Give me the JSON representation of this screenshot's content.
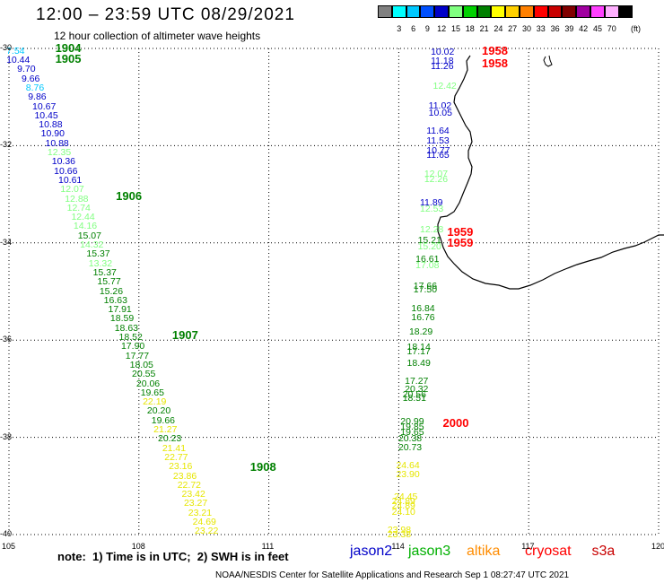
{
  "header": {
    "title": "12:00 – 23:59 UTC 08/29/2021",
    "subtitle": "12 hour collection of altimeter wave heights"
  },
  "scale": {
    "unit": "(ft)",
    "bins": [
      {
        "color": "#808080",
        "label": ""
      },
      {
        "color": "#00ffff",
        "label": "3"
      },
      {
        "color": "#00c8ff",
        "label": "6"
      },
      {
        "color": "#0050ff",
        "label": "9"
      },
      {
        "color": "#0000c8",
        "label": "12"
      },
      {
        "color": "#80ff80",
        "label": "15"
      },
      {
        "color": "#00d000",
        "label": "18"
      },
      {
        "color": "#008000",
        "label": "21"
      },
      {
        "color": "#ffff00",
        "label": "24"
      },
      {
        "color": "#ffd000",
        "label": "27"
      },
      {
        "color": "#ff8000",
        "label": "30"
      },
      {
        "color": "#ff0000",
        "label": "33"
      },
      {
        "color": "#c80000",
        "label": "36"
      },
      {
        "color": "#800000",
        "label": "39"
      },
      {
        "color": "#a000a0",
        "label": "42"
      },
      {
        "color": "#ff40ff",
        "label": "45"
      },
      {
        "color": "#ffb0ff",
        "label": "70"
      },
      {
        "color": "#000000",
        "label": ""
      }
    ]
  },
  "axes": {
    "lon_ticks": [
      "105",
      "108",
      "111",
      "114",
      "117",
      "120"
    ],
    "lat_ticks": [
      "-30",
      "-32",
      "-34",
      "-36",
      "-38",
      "-40"
    ],
    "lon_range": [
      105,
      120
    ],
    "lat_range": [
      -30,
      -40
    ]
  },
  "colors": {
    "blue": "#0000c8",
    "lblue": "#00c8ff",
    "lgreen": "#80ff80",
    "green": "#008000",
    "yellow": "#e6e600",
    "red": "#ff0000",
    "orange": "#ff8c00"
  },
  "tracks": [
    {
      "name": "west-track",
      "color": "green",
      "points": [
        {
          "lon": 105.25,
          "lat": -30.07,
          "value": "7.54",
          "c": "lblue"
        },
        {
          "lon": 105.25,
          "lat": -30.26,
          "value": "10.44",
          "c": "blue"
        },
        {
          "lon": 105.5,
          "lat": -30.45,
          "value": "9.70",
          "c": "blue"
        },
        {
          "lon": 105.6,
          "lat": -30.64,
          "value": "9.66",
          "c": "blue"
        },
        {
          "lon": 105.7,
          "lat": -30.83,
          "value": "8.76",
          "c": "lblue"
        },
        {
          "lon": 105.75,
          "lat": -31.02,
          "value": "9.86",
          "c": "blue"
        },
        {
          "lon": 105.85,
          "lat": -31.21,
          "value": "10.67",
          "c": "blue"
        },
        {
          "lon": 105.9,
          "lat": -31.4,
          "value": "10.45",
          "c": "blue"
        },
        {
          "lon": 106.0,
          "lat": -31.59,
          "value": "10.88",
          "c": "blue"
        },
        {
          "lon": 106.05,
          "lat": -31.78,
          "value": "10.90",
          "c": "blue"
        },
        {
          "lon": 106.15,
          "lat": -31.97,
          "value": "10.88",
          "c": "blue"
        },
        {
          "lon": 106.2,
          "lat": -32.16,
          "value": "12.35",
          "c": "lgreen"
        },
        {
          "lon": 106.3,
          "lat": -32.35,
          "value": "10.36",
          "c": "blue"
        },
        {
          "lon": 106.35,
          "lat": -32.54,
          "value": "10.66",
          "c": "blue"
        },
        {
          "lon": 106.45,
          "lat": -32.73,
          "value": "10.61",
          "c": "blue"
        },
        {
          "lon": 106.5,
          "lat": -32.92,
          "value": "12.07",
          "c": "lgreen"
        },
        {
          "lon": 106.6,
          "lat": -33.11,
          "value": "12.88",
          "c": "lgreen"
        },
        {
          "lon": 106.65,
          "lat": -33.3,
          "value": "12.74",
          "c": "lgreen"
        },
        {
          "lon": 106.75,
          "lat": -33.49,
          "value": "12.44",
          "c": "lgreen"
        },
        {
          "lon": 106.8,
          "lat": -33.68,
          "value": "14.16",
          "c": "lgreen"
        },
        {
          "lon": 106.9,
          "lat": -33.87,
          "value": "15.07",
          "c": "green"
        },
        {
          "lon": 106.95,
          "lat": -34.06,
          "value": "14.32",
          "c": "lgreen"
        },
        {
          "lon": 107.1,
          "lat": -34.25,
          "value": "15.37",
          "c": "green"
        },
        {
          "lon": 107.15,
          "lat": -34.44,
          "value": "13.32",
          "c": "lgreen"
        },
        {
          "lon": 107.25,
          "lat": -34.63,
          "value": "15.37",
          "c": "green"
        },
        {
          "lon": 107.35,
          "lat": -34.82,
          "value": "15.77",
          "c": "green"
        },
        {
          "lon": 107.4,
          "lat": -35.01,
          "value": "15.26",
          "c": "green"
        },
        {
          "lon": 107.5,
          "lat": -35.2,
          "value": "16.63",
          "c": "green"
        },
        {
          "lon": 107.6,
          "lat": -35.39,
          "value": "17.91",
          "c": "green"
        },
        {
          "lon": 107.65,
          "lat": -35.58,
          "value": "18.59",
          "c": "green"
        },
        {
          "lon": 107.75,
          "lat": -35.77,
          "value": "18.63",
          "c": "green"
        },
        {
          "lon": 107.85,
          "lat": -35.96,
          "value": "18.52",
          "c": "green"
        },
        {
          "lon": 107.9,
          "lat": -36.15,
          "value": "17.90",
          "c": "green"
        },
        {
          "lon": 108.0,
          "lat": -36.34,
          "value": "17.77",
          "c": "green"
        },
        {
          "lon": 108.1,
          "lat": -36.53,
          "value": "18.05",
          "c": "green"
        },
        {
          "lon": 108.15,
          "lat": -36.72,
          "value": "20.55",
          "c": "green"
        },
        {
          "lon": 108.25,
          "lat": -36.91,
          "value": "20.06",
          "c": "green"
        },
        {
          "lon": 108.35,
          "lat": -37.1,
          "value": "19.65",
          "c": "green"
        },
        {
          "lon": 108.4,
          "lat": -37.29,
          "value": "22.19",
          "c": "yellow"
        },
        {
          "lon": 108.5,
          "lat": -37.48,
          "value": "20.20",
          "c": "green"
        },
        {
          "lon": 108.6,
          "lat": -37.67,
          "value": "19.66",
          "c": "green"
        },
        {
          "lon": 108.65,
          "lat": -37.86,
          "value": "21.27",
          "c": "yellow"
        },
        {
          "lon": 108.75,
          "lat": -38.05,
          "value": "20.23",
          "c": "green"
        },
        {
          "lon": 108.85,
          "lat": -38.24,
          "value": "21.41",
          "c": "yellow"
        },
        {
          "lon": 108.9,
          "lat": -38.43,
          "value": "22.77",
          "c": "yellow"
        },
        {
          "lon": 109.0,
          "lat": -38.62,
          "value": "23.16",
          "c": "yellow"
        },
        {
          "lon": 109.1,
          "lat": -38.81,
          "value": "23.86",
          "c": "yellow"
        },
        {
          "lon": 109.2,
          "lat": -39.0,
          "value": "22.72",
          "c": "yellow"
        },
        {
          "lon": 109.3,
          "lat": -39.19,
          "value": "23.42",
          "c": "yellow"
        },
        {
          "lon": 109.35,
          "lat": -39.38,
          "value": "23.27",
          "c": "yellow"
        },
        {
          "lon": 109.45,
          "lat": -39.57,
          "value": "23.21",
          "c": "yellow"
        },
        {
          "lon": 109.55,
          "lat": -39.76,
          "value": "24.69",
          "c": "yellow"
        },
        {
          "lon": 109.6,
          "lat": -39.95,
          "value": "23.22",
          "c": "yellow"
        }
      ]
    },
    {
      "name": "east-track",
      "color": "green",
      "points": [
        {
          "lon": 115.05,
          "lat": -30.09,
          "value": "10.02",
          "c": "blue"
        },
        {
          "lon": 115.05,
          "lat": -30.28,
          "value": "11.18",
          "c": "blue"
        },
        {
          "lon": 115.05,
          "lat": -30.38,
          "value": "11.26",
          "c": "blue"
        },
        {
          "lon": 115.1,
          "lat": -30.8,
          "value": "12.42",
          "c": "lgreen"
        },
        {
          "lon": 115.0,
          "lat": -31.2,
          "value": "11.02",
          "c": "blue"
        },
        {
          "lon": 115.0,
          "lat": -31.35,
          "value": "10.05",
          "c": "blue"
        },
        {
          "lon": 114.95,
          "lat": -31.72,
          "value": "11.64",
          "c": "blue"
        },
        {
          "lon": 114.95,
          "lat": -31.91,
          "value": "11.53",
          "c": "blue"
        },
        {
          "lon": 114.95,
          "lat": -32.12,
          "value": "10.77",
          "c": "blue"
        },
        {
          "lon": 114.95,
          "lat": -32.22,
          "value": "11.65",
          "c": "blue"
        },
        {
          "lon": 114.9,
          "lat": -32.6,
          "value": "12.07",
          "c": "lgreen"
        },
        {
          "lon": 114.9,
          "lat": -32.72,
          "value": "12.26",
          "c": "lgreen"
        },
        {
          "lon": 114.8,
          "lat": -33.2,
          "value": "11.89",
          "c": "blue"
        },
        {
          "lon": 114.8,
          "lat": -33.33,
          "value": "12.53",
          "c": "lgreen"
        },
        {
          "lon": 114.8,
          "lat": -33.75,
          "value": "12.28",
          "c": "lgreen"
        },
        {
          "lon": 114.75,
          "lat": -33.97,
          "value": "15.21",
          "c": "green"
        },
        {
          "lon": 114.75,
          "lat": -34.1,
          "value": "15.20",
          "c": "lgreen"
        },
        {
          "lon": 114.7,
          "lat": -34.36,
          "value": "16.61",
          "c": "green"
        },
        {
          "lon": 114.7,
          "lat": -34.48,
          "value": "17.08",
          "c": "lgreen"
        },
        {
          "lon": 114.65,
          "lat": -34.9,
          "value": "17.66",
          "c": "green"
        },
        {
          "lon": 114.65,
          "lat": -34.98,
          "value": "17.50",
          "c": "green"
        },
        {
          "lon": 114.6,
          "lat": -35.36,
          "value": "16.84",
          "c": "green"
        },
        {
          "lon": 114.6,
          "lat": -35.55,
          "value": "16.76",
          "c": "green"
        },
        {
          "lon": 114.55,
          "lat": -35.85,
          "value": "18.29",
          "c": "green"
        },
        {
          "lon": 114.5,
          "lat": -36.16,
          "value": "18.14",
          "c": "green"
        },
        {
          "lon": 114.5,
          "lat": -36.25,
          "value": "17.17",
          "c": "green"
        },
        {
          "lon": 114.5,
          "lat": -36.5,
          "value": "18.49",
          "c": "green"
        },
        {
          "lon": 114.45,
          "lat": -36.86,
          "value": "17.27",
          "c": "green"
        },
        {
          "lon": 114.45,
          "lat": -37.03,
          "value": "20.32",
          "c": "green"
        },
        {
          "lon": 114.4,
          "lat": -37.14,
          "value": "20.56",
          "c": "green"
        },
        {
          "lon": 114.4,
          "lat": -37.22,
          "value": "18.51",
          "c": "green"
        },
        {
          "lon": 114.35,
          "lat": -37.7,
          "value": "20.99",
          "c": "green"
        },
        {
          "lon": 114.35,
          "lat": -37.81,
          "value": "19.85",
          "c": "green"
        },
        {
          "lon": 114.35,
          "lat": -37.92,
          "value": "19.65",
          "c": "green"
        },
        {
          "lon": 114.3,
          "lat": -38.04,
          "value": "20.38",
          "c": "green"
        },
        {
          "lon": 114.3,
          "lat": -38.23,
          "value": "20.73",
          "c": "green"
        },
        {
          "lon": 114.25,
          "lat": -38.59,
          "value": "24.64",
          "c": "yellow"
        },
        {
          "lon": 114.25,
          "lat": -38.78,
          "value": "23.90",
          "c": "yellow"
        },
        {
          "lon": 114.2,
          "lat": -39.25,
          "value": "24.45",
          "c": "yellow"
        },
        {
          "lon": 114.15,
          "lat": -39.34,
          "value": "24.89",
          "c": "yellow"
        },
        {
          "lon": 114.15,
          "lat": -39.42,
          "value": "24.89",
          "c": "yellow"
        },
        {
          "lon": 114.15,
          "lat": -39.55,
          "value": "24.10",
          "c": "yellow"
        },
        {
          "lon": 114.05,
          "lat": -39.92,
          "value": "23.98",
          "c": "yellow"
        },
        {
          "lon": 114.05,
          "lat": -40.02,
          "value": "23.38",
          "c": "yellow"
        }
      ]
    }
  ],
  "time_markers": [
    {
      "lon": 106.4,
      "lat": -29.98,
      "value": "1904",
      "c": "green"
    },
    {
      "lon": 106.4,
      "lat": -30.2,
      "value": "1905",
      "c": "green"
    },
    {
      "lon": 107.8,
      "lat": -33.02,
      "value": "1906",
      "c": "green"
    },
    {
      "lon": 109.1,
      "lat": -35.88,
      "value": "1907",
      "c": "green"
    },
    {
      "lon": 110.9,
      "lat": -38.59,
      "value": "1908",
      "c": "green"
    },
    {
      "lon": 116.25,
      "lat": -30.04,
      "value": "1958",
      "c": "red"
    },
    {
      "lon": 116.25,
      "lat": -30.29,
      "value": "1958",
      "c": "red"
    },
    {
      "lon": 115.45,
      "lat": -33.76,
      "value": "1959",
      "c": "red"
    },
    {
      "lon": 115.45,
      "lat": -33.98,
      "value": "1959",
      "c": "red"
    },
    {
      "lon": 115.35,
      "lat": -37.69,
      "value": "2000",
      "c": "red"
    }
  ],
  "note": "note:  1) Time is in UTC;  2) SWH is in feet",
  "legend": [
    {
      "label": "jason2",
      "color": "#0000c8"
    },
    {
      "label": "jason3",
      "color": "#00b000"
    },
    {
      "label": "altika",
      "color": "#ff8c00"
    },
    {
      "label": "cryosat",
      "color": "#ff0000"
    },
    {
      "label": "s3a",
      "color": "#c80000"
    }
  ],
  "footer": "NOAA/NESDIS Center for Satellite Applications and Research   Sep  1 08:27:47 UTC 2021"
}
